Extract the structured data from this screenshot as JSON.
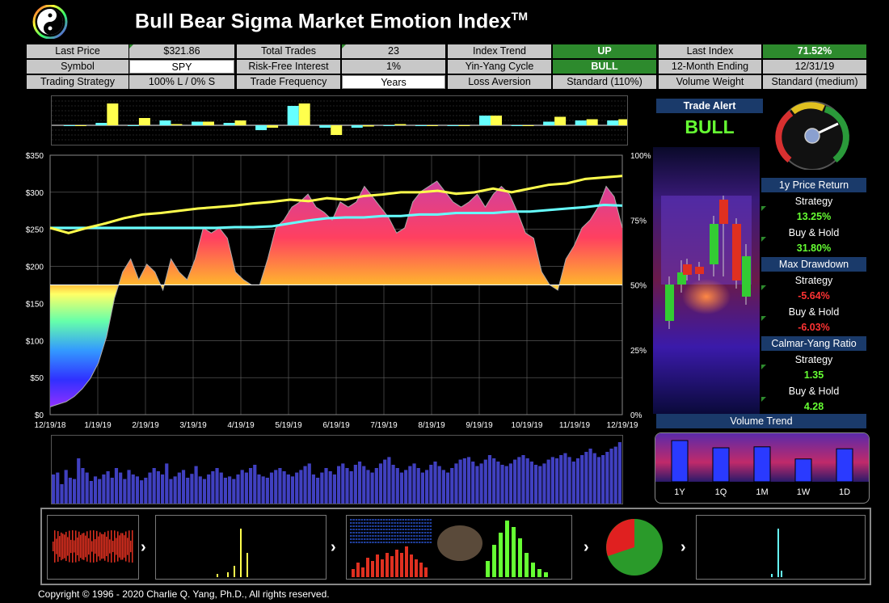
{
  "app": {
    "title": "Bull Bear Sigma Market Emotion Index",
    "trademark": "TM",
    "copyright": "Copyright © 1996 - 2020 Charlie Q. Yang, Ph.D., All rights reserved."
  },
  "info_grid": {
    "row1": [
      {
        "label": "Last Price",
        "value": "$321.86"
      },
      {
        "label": "Total Trades",
        "value": "23"
      },
      {
        "label": "Index Trend",
        "value": "UP"
      },
      {
        "label": "Last Index",
        "value": "71.52%"
      }
    ],
    "row2": [
      {
        "label": "Symbol",
        "value": "SPY"
      },
      {
        "label": "Risk-Free Interest",
        "value": "1%"
      },
      {
        "label": "Yin-Yang Cycle",
        "value": "BULL"
      },
      {
        "label": "12-Month Ending",
        "value": "12/31/19"
      }
    ],
    "row3": [
      {
        "label": "Trading Strategy",
        "value": "100% L / 0% S"
      },
      {
        "label": "Trade Frequency",
        "value": "Years"
      },
      {
        "label": "Loss Aversion",
        "value": "Standard (110%)"
      },
      {
        "label": "Volume Weight",
        "value": "Standard (medium)"
      }
    ]
  },
  "trade_alert": {
    "label": "Trade Alert",
    "value": "BULL"
  },
  "stats": {
    "price_return": {
      "label": "1y Price Return",
      "strategy_label": "Strategy",
      "strategy_value": "13.25%",
      "bh_label": "Buy & Hold",
      "bh_value": "31.80%"
    },
    "max_drawdown": {
      "label": "Max Drawdown",
      "strategy_label": "Strategy",
      "strategy_value": "-5.64%",
      "bh_label": "Buy & Hold",
      "bh_value": "-6.03%"
    },
    "calmar": {
      "label": "Calmar-Yang Ratio",
      "strategy_label": "Strategy",
      "strategy_value": "1.35",
      "bh_label": "Buy & Hold",
      "bh_value": "4.28"
    }
  },
  "volume_trend": {
    "label": "Volume Trend",
    "periods": [
      "1Y",
      "1Q",
      "1M",
      "1W",
      "1D"
    ],
    "levels": [
      0.85,
      0.7,
      0.72,
      0.47,
      0.68
    ]
  },
  "colors": {
    "green": "#2d8a2d",
    "yellow": "#ffff4d",
    "cyan": "#66ffff",
    "red": "#ff3333",
    "blue_header": "#1a3a6a",
    "positive": "#66ff33",
    "negative": "#ff3333"
  },
  "chart_data": {
    "type": "line",
    "x_ticks": [
      "12/19/18",
      "1/19/19",
      "2/19/19",
      "3/19/19",
      "4/19/19",
      "5/19/19",
      "6/19/19",
      "7/19/19",
      "8/19/19",
      "9/19/19",
      "10/19/19",
      "11/19/19",
      "12/19/19"
    ],
    "y_left_ticks": [
      "$0",
      "$50",
      "$100",
      "$150",
      "$200",
      "$250",
      "$300",
      "$350"
    ],
    "y_right_ticks": [
      "0%",
      "25%",
      "50%",
      "75%",
      "100%"
    ],
    "ylim_left": [
      0,
      350
    ],
    "ylim_right": [
      0,
      100
    ],
    "grid": true,
    "series": [
      {
        "values": [
          252,
          245,
          252,
          258,
          265,
          270,
          272,
          275,
          278,
          280,
          282,
          285,
          287,
          290,
          288,
          292,
          290,
          295,
          297,
          300,
          300,
          302,
          298,
          300,
          305,
          300,
          305,
          310,
          312,
          318,
          320,
          322
        ]
      },
      {
        "values": [
          252,
          252,
          252,
          252,
          252,
          252,
          252,
          252,
          252,
          252,
          253,
          253,
          254,
          258,
          262,
          265,
          266,
          266,
          268,
          268,
          270,
          270,
          272,
          272,
          272,
          274,
          274,
          276,
          278,
          280,
          283,
          282
        ]
      },
      {
        "values": [
          3,
          4,
          5,
          7,
          10,
          14,
          20,
          30,
          45,
          55,
          60,
          52,
          58,
          55,
          48,
          60,
          55,
          52,
          60,
          72,
          70,
          72,
          68,
          55,
          52,
          50,
          50,
          60,
          72,
          75,
          80,
          82,
          85,
          80,
          78,
          75,
          82,
          80,
          82,
          88,
          84,
          80,
          76,
          70,
          72,
          82,
          86,
          88,
          90,
          86,
          82,
          80,
          82,
          85,
          80,
          85,
          88,
          85,
          78,
          70,
          68,
          55,
          50,
          48,
          60,
          65,
          72,
          75,
          80,
          88,
          84,
          72
        ]
      }
    ]
  },
  "volume_bars": [
    45,
    48,
    30,
    52,
    40,
    38,
    70,
    55,
    48,
    35,
    42,
    38,
    45,
    50,
    40,
    55,
    48,
    38,
    52,
    45,
    42,
    36,
    40,
    48,
    55,
    50,
    45,
    62,
    38,
    42,
    48,
    52,
    40,
    46,
    58,
    42,
    38,
    45,
    50,
    55,
    48,
    40,
    42,
    38,
    45,
    52,
    48,
    55,
    60,
    45,
    42,
    40,
    48,
    52,
    55,
    50,
    45,
    42,
    48,
    52,
    58,
    62,
    45,
    40,
    48,
    55,
    50,
    45,
    58,
    62,
    55,
    50,
    60,
    65,
    58,
    52,
    48,
    55,
    62,
    68,
    72,
    60,
    55,
    48,
    52,
    58,
    62,
    55,
    48,
    52,
    60,
    65,
    58,
    52,
    48,
    55,
    62,
    68,
    70,
    72,
    65,
    58,
    62,
    68,
    75,
    70,
    65,
    60,
    58,
    62,
    68,
    72,
    75,
    70,
    65,
    60,
    58,
    62,
    68,
    72,
    70,
    75,
    78,
    72,
    65,
    70,
    75,
    80,
    85,
    78,
    72,
    75,
    80,
    85,
    88,
    95
  ],
  "top_bars": [
    {
      "yellow": 0.0,
      "cyan": 0.0
    },
    {
      "yellow": 0.9,
      "cyan": 0.1
    },
    {
      "yellow": 0.3,
      "cyan": 0.0
    },
    {
      "yellow": 0.05,
      "cyan": 0.2
    },
    {
      "yellow": 0.15,
      "cyan": 0.15
    },
    {
      "yellow": 0.2,
      "cyan": 0.1
    },
    {
      "yellow": -0.1,
      "cyan": -0.2
    },
    {
      "yellow": 0.9,
      "cyan": 0.8
    },
    {
      "yellow": -0.4,
      "cyan": -0.1
    },
    {
      "yellow": -0.05,
      "cyan": -0.1
    },
    {
      "yellow": 0.05,
      "cyan": 0.0
    },
    {
      "yellow": 0.0,
      "cyan": 0.0
    },
    {
      "yellow": 0.0,
      "cyan": 0.0
    },
    {
      "yellow": 0.4,
      "cyan": 0.4
    },
    {
      "yellow": 0.0,
      "cyan": 0.0
    },
    {
      "yellow": 0.35,
      "cyan": 0.15
    },
    {
      "yellow": 0.25,
      "cyan": 0.2
    },
    {
      "yellow": 0.25,
      "cyan": 0.2
    }
  ]
}
